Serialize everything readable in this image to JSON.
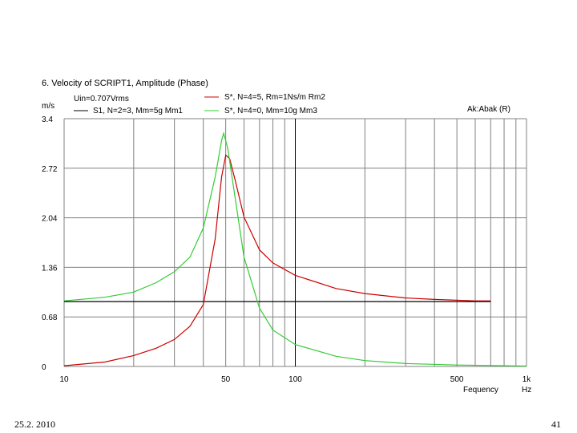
{
  "chart_data": {
    "type": "line",
    "title": "6. Velocity of SCRIPT1, Amplitude (Phase)",
    "ylabel": "m/s",
    "xlabel": "Fequency",
    "xunit": "Hz",
    "x_scale": "log",
    "xlim": [
      10,
      1000
    ],
    "ylim": [
      0,
      3.4
    ],
    "grid": true,
    "y_ticks": [
      "3.4",
      "2.72",
      "2.04",
      "1.36",
      "0.68",
      "0"
    ],
    "x_ticks": [
      {
        "value": 10,
        "label": "10"
      },
      {
        "value": 50,
        "label": "50"
      },
      {
        "value": 100,
        "label": "100"
      },
      {
        "value": 500,
        "label": "500"
      },
      {
        "value": 1000,
        "label": "1k"
      }
    ],
    "annotation": "Uin=0.707Vrms",
    "corner_label": "Ak:Abak (R)",
    "series": [
      {
        "name": "S1, N=2=3, Mm=5g Mm1",
        "color": "#000000",
        "points": [
          [
            10,
            0.89
          ],
          [
            20,
            0.89
          ],
          [
            50,
            0.89
          ],
          [
            100,
            0.89
          ],
          [
            200,
            0.89
          ],
          [
            700,
            0.89
          ]
        ]
      },
      {
        "name": "S*, N=4=5, Rm=1Ns/m Rm2",
        "color": "#cc0000",
        "points": [
          [
            10,
            0.01
          ],
          [
            15,
            0.06
          ],
          [
            20,
            0.15
          ],
          [
            25,
            0.25
          ],
          [
            30,
            0.37
          ],
          [
            35,
            0.55
          ],
          [
            40,
            0.85
          ],
          [
            45,
            1.75
          ],
          [
            48,
            2.6
          ],
          [
            50,
            2.9
          ],
          [
            52,
            2.85
          ],
          [
            55,
            2.55
          ],
          [
            60,
            2.05
          ],
          [
            70,
            1.6
          ],
          [
            80,
            1.42
          ],
          [
            100,
            1.25
          ],
          [
            150,
            1.07
          ],
          [
            200,
            1.0
          ],
          [
            300,
            0.94
          ],
          [
            400,
            0.92
          ],
          [
            600,
            0.9
          ],
          [
            700,
            0.9
          ]
        ]
      },
      {
        "name": "S*, N=4=0, Mm=10g Mm3",
        "color": "#33cc33",
        "points": [
          [
            10,
            0.9
          ],
          [
            15,
            0.95
          ],
          [
            20,
            1.02
          ],
          [
            25,
            1.15
          ],
          [
            30,
            1.3
          ],
          [
            35,
            1.5
          ],
          [
            40,
            1.9
          ],
          [
            45,
            2.6
          ],
          [
            48,
            3.1
          ],
          [
            49,
            3.2
          ],
          [
            51,
            3.0
          ],
          [
            55,
            2.3
          ],
          [
            60,
            1.5
          ],
          [
            70,
            0.8
          ],
          [
            80,
            0.5
          ],
          [
            100,
            0.3
          ],
          [
            150,
            0.14
          ],
          [
            200,
            0.08
          ],
          [
            300,
            0.04
          ],
          [
            500,
            0.02
          ],
          [
            1000,
            0.005
          ]
        ]
      }
    ]
  },
  "footer": {
    "date": "25.2. 2010",
    "page": "41"
  }
}
